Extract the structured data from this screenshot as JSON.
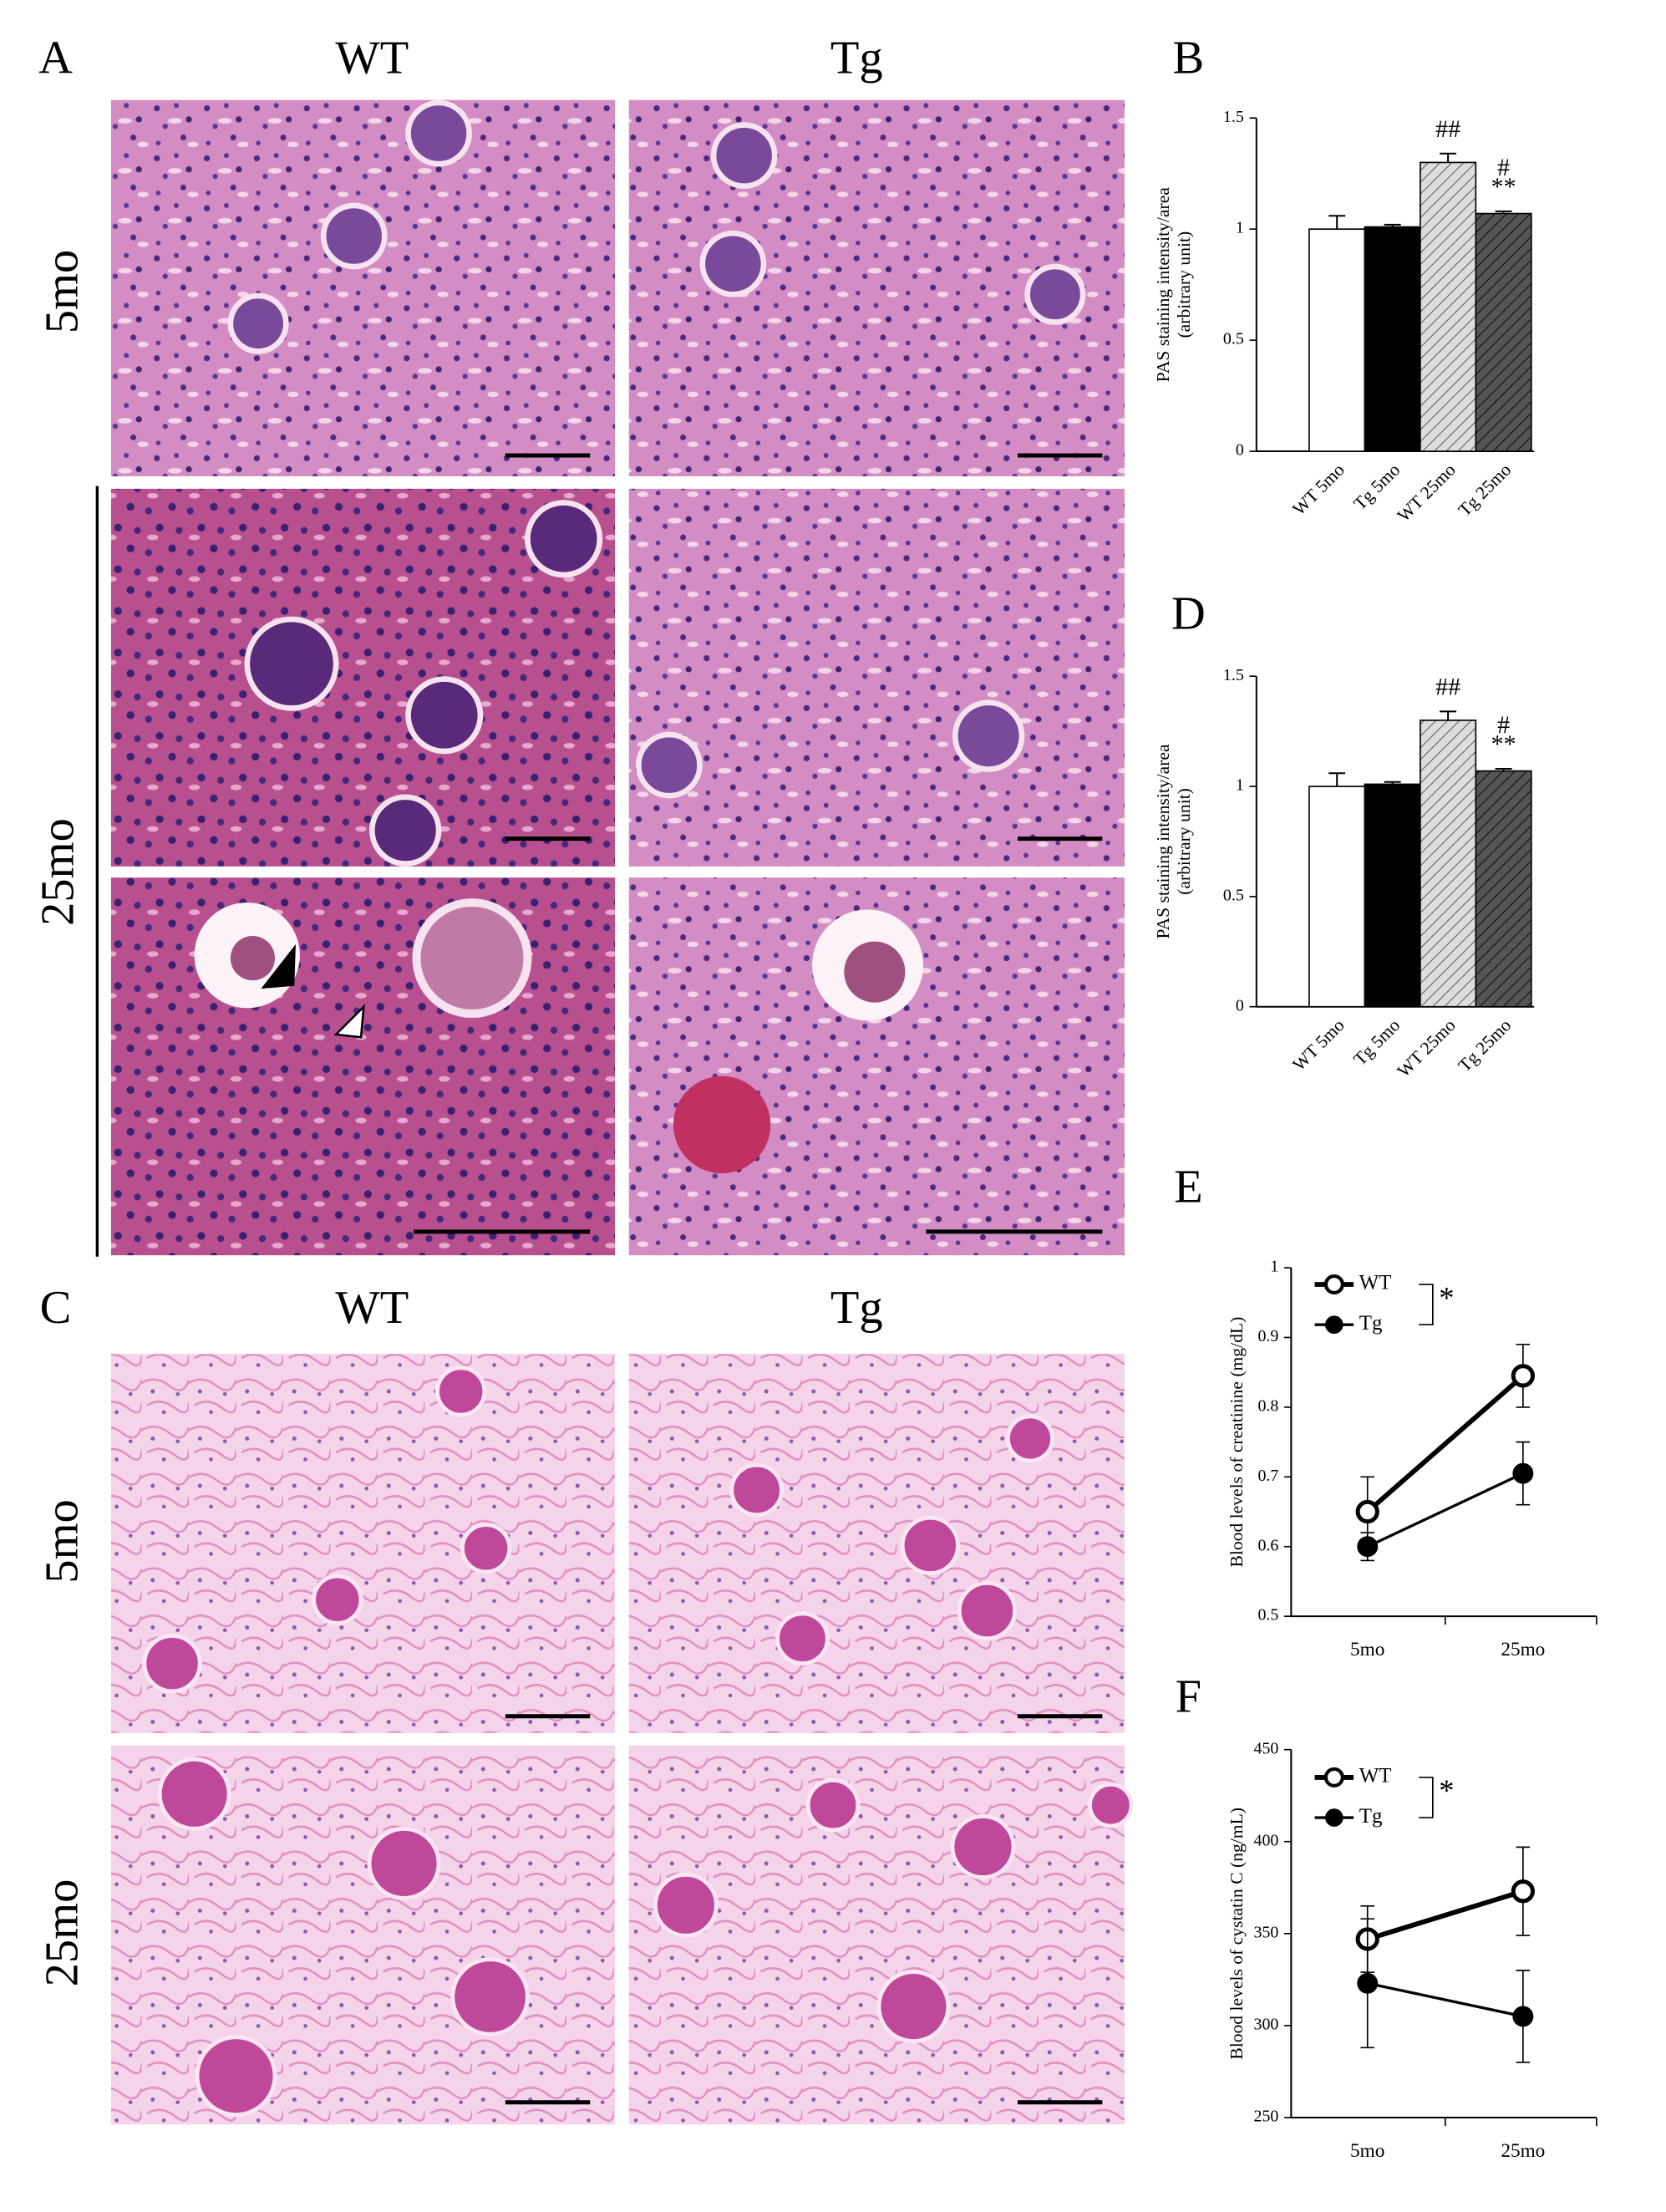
{
  "figure": {
    "panel_A": "A",
    "A_columns": [
      "WT",
      "Tg"
    ],
    "A_rows": [
      "5mo",
      "25mo"
    ],
    "panel_C": "C",
    "C_columns": [
      "WT",
      "Tg"
    ],
    "C_rows": [
      "5mo",
      "25mo"
    ]
  },
  "chart_data": [
    {
      "type": "bar",
      "label": "B",
      "ylabel": [
        "PAS staining intensity/area",
        "(arbitrary unit)"
      ],
      "categories": [
        "WT 5mo",
        "Tg 5mo",
        "WT 25mo",
        "Tg 25mo"
      ],
      "values": [
        1.0,
        1.01,
        1.3,
        1.07
      ],
      "errors": [
        0.06,
        0.01,
        0.04,
        0.01
      ],
      "colors": [
        "#ffffff",
        "#000000",
        "#dddddd",
        "#555555"
      ],
      "hatched": [
        false,
        false,
        true,
        true
      ],
      "ylim": [
        0,
        1.5
      ],
      "yticks": [
        0,
        0.5,
        1,
        1.5
      ],
      "annotations": [
        {
          "text": "##",
          "category": "WT 25mo"
        },
        {
          "text": "**",
          "category": "Tg 25mo"
        },
        {
          "text": "#",
          "category": "Tg 25mo"
        }
      ]
    },
    {
      "type": "bar",
      "label": "D",
      "ylabel": [
        "PAS staining intensity/area",
        "(arbitrary unit)"
      ],
      "categories": [
        "WT 5mo",
        "Tg 5mo",
        "WT 25mo",
        "Tg 25mo"
      ],
      "values": [
        1.0,
        1.01,
        1.3,
        1.07
      ],
      "errors": [
        0.06,
        0.01,
        0.04,
        0.01
      ],
      "colors": [
        "#ffffff",
        "#000000",
        "#dddddd",
        "#555555"
      ],
      "hatched": [
        false,
        false,
        true,
        true
      ],
      "ylim": [
        0,
        1.5
      ],
      "yticks": [
        0,
        0.5,
        1,
        1.5
      ],
      "annotations": [
        {
          "text": "##",
          "category": "WT 25mo"
        },
        {
          "text": "**",
          "category": "Tg 25mo"
        },
        {
          "text": "#",
          "category": "Tg 25mo"
        }
      ]
    },
    {
      "type": "line",
      "label": "E",
      "ylabel": [
        "Blood levels of creatinine (mg/dL)"
      ],
      "categories": [
        "5mo",
        "25mo"
      ],
      "series": [
        {
          "name": "WT",
          "color": "#000000",
          "marker": "open",
          "values": [
            0.65,
            0.845
          ],
          "errors": [
            0.05,
            0.045
          ]
        },
        {
          "name": "Tg",
          "color": "#000000",
          "marker": "filled",
          "values": [
            0.6,
            0.705
          ],
          "errors": [
            0.02,
            0.045
          ]
        }
      ],
      "significance": "*",
      "ylim": [
        0.5,
        1
      ],
      "yticks": [
        0.5,
        0.6,
        0.7,
        0.8,
        0.9,
        1
      ]
    },
    {
      "type": "line",
      "label": "F",
      "ylabel": [
        "Blood levels of cystatin C (ng/mL)"
      ],
      "categories": [
        "5mo",
        "25mo"
      ],
      "series": [
        {
          "name": "WT",
          "color": "#000000",
          "marker": "open",
          "values": [
            347,
            373
          ],
          "errors": [
            18,
            24
          ]
        },
        {
          "name": "Tg",
          "color": "#000000",
          "marker": "filled",
          "values": [
            323,
            305
          ],
          "errors": [
            35,
            25
          ]
        }
      ],
      "significance": "*",
      "ylim": [
        250,
        450
      ],
      "yticks": [
        250,
        300,
        350,
        400,
        450
      ]
    }
  ]
}
